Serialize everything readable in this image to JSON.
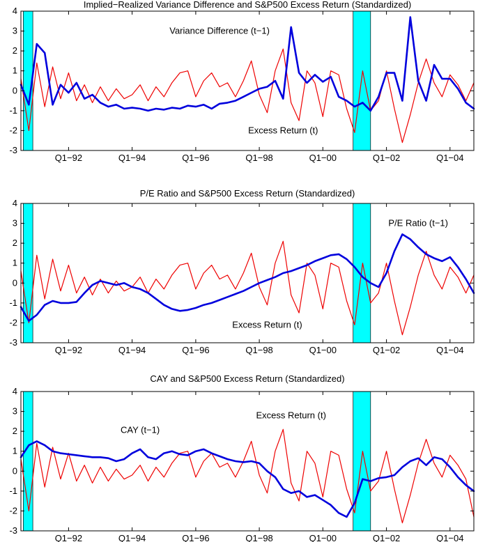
{
  "figure": {
    "background": "#ffffff",
    "axes_color": "#000000"
  },
  "chart_data": [
    {
      "type": "line",
      "title": "Implied−Realized Variance Difference and S&P500 Excess Return (Standardized)",
      "x_unit": "quarter",
      "xlim": [
        0,
        57
      ],
      "ylim": [
        -3,
        4
      ],
      "yticks": [
        -3,
        -2,
        -1,
        0,
        1,
        2,
        3,
        4
      ],
      "xticks": [
        6,
        14,
        22,
        30,
        38,
        46,
        54
      ],
      "xticklabels": [
        "Q1−92",
        "Q1−94",
        "Q1−96",
        "Q1−98",
        "Q1−00",
        "Q1−02",
        "Q1−04"
      ],
      "grid": false,
      "band_color": "#00ffff",
      "recession_bands": [
        [
          0.3,
          1.5
        ],
        [
          41.8,
          44.0
        ]
      ],
      "series": [
        {
          "name": "excess-return",
          "label": "Excess Return (t)",
          "color": "#ee0000",
          "width": 1.2,
          "values": [
            0.6,
            -2.0,
            1.4,
            -0.8,
            1.2,
            -0.4,
            0.9,
            -0.5,
            0.3,
            -0.6,
            0.2,
            -0.5,
            0.1,
            -0.4,
            -0.2,
            0.3,
            -0.5,
            0.2,
            -0.3,
            0.4,
            0.9,
            1.0,
            -0.3,
            0.5,
            0.9,
            0.2,
            0.4,
            -0.3,
            0.5,
            1.5,
            -0.2,
            -1.1,
            1.0,
            2.1,
            -0.6,
            -1.5,
            1.0,
            0.4,
            -1.3,
            1.0,
            0.8,
            -0.9,
            -2.1,
            1.0,
            -1.0,
            -0.5,
            1.0,
            -0.9,
            -2.6,
            -1.2,
            0.4,
            1.6,
            0.4,
            -0.3,
            0.8,
            0.3,
            -0.5,
            0.4
          ]
        },
        {
          "name": "variance-difference",
          "label": "Variance Difference (t−1)",
          "color": "#0000dd",
          "width": 2.6,
          "values": [
            0.3,
            -0.7,
            2.35,
            1.9,
            -0.7,
            0.3,
            -0.1,
            0.4,
            -0.4,
            -0.2,
            -0.6,
            -0.8,
            -0.7,
            -0.9,
            -0.85,
            -0.9,
            -1.0,
            -0.9,
            -0.95,
            -0.85,
            -0.9,
            -0.75,
            -0.8,
            -0.7,
            -0.9,
            -0.65,
            -0.6,
            -0.5,
            -0.3,
            -0.1,
            0.1,
            0.2,
            0.5,
            -0.4,
            3.2,
            0.9,
            0.4,
            0.8,
            0.45,
            0.7,
            -0.3,
            -0.5,
            -0.8,
            -0.6,
            -1.0,
            -0.3,
            0.9,
            0.9,
            -0.5,
            3.7,
            0.5,
            -0.5,
            1.3,
            0.6,
            0.6,
            0.1,
            -0.6,
            -0.9
          ]
        }
      ],
      "annotations": [
        {
          "text": "Variance Difference (t−1)",
          "x": 25,
          "y": 3.0
        },
        {
          "text": "Excess Return (t)",
          "x": 33,
          "y": -2.0
        }
      ]
    },
    {
      "type": "line",
      "title": "P/E Ratio and S&P500 Excess Return (Standardized)",
      "x_unit": "quarter",
      "xlim": [
        0,
        57
      ],
      "ylim": [
        -3,
        4
      ],
      "yticks": [
        -3,
        -2,
        -1,
        0,
        1,
        2,
        3,
        4
      ],
      "xticks": [
        6,
        14,
        22,
        30,
        38,
        46,
        54
      ],
      "xticklabels": [
        "Q1−92",
        "Q1−94",
        "Q1−96",
        "Q1−98",
        "Q1−00",
        "Q1−02",
        "Q1−04"
      ],
      "grid": false,
      "band_color": "#00ffff",
      "recession_bands": [
        [
          0.3,
          1.5
        ],
        [
          41.8,
          44.0
        ]
      ],
      "series": [
        {
          "name": "excess-return",
          "label": "Excess Return (t)",
          "color": "#ee0000",
          "width": 1.2,
          "values": [
            0.6,
            -2.0,
            1.4,
            -0.8,
            1.2,
            -0.4,
            0.9,
            -0.5,
            0.3,
            -0.6,
            0.2,
            -0.5,
            0.1,
            -0.4,
            -0.2,
            0.3,
            -0.5,
            0.2,
            -0.3,
            0.4,
            0.9,
            1.0,
            -0.3,
            0.5,
            0.9,
            0.2,
            0.4,
            -0.3,
            0.5,
            1.5,
            -0.2,
            -1.1,
            1.0,
            2.1,
            -0.6,
            -1.5,
            1.0,
            0.4,
            -1.3,
            1.0,
            0.8,
            -0.9,
            -2.1,
            1.0,
            -1.0,
            -0.5,
            1.0,
            -0.9,
            -2.6,
            -1.2,
            0.4,
            1.6,
            0.4,
            -0.3,
            0.8,
            0.3,
            -0.5,
            0.4
          ]
        },
        {
          "name": "pe-ratio",
          "label": "P/E Ratio (t−1)",
          "color": "#0000dd",
          "width": 2.6,
          "values": [
            -1.2,
            -1.9,
            -1.6,
            -1.1,
            -0.9,
            -1.0,
            -1.0,
            -0.95,
            -0.5,
            -0.1,
            0.1,
            0.0,
            -0.1,
            0.0,
            -0.2,
            -0.3,
            -0.5,
            -0.8,
            -1.1,
            -1.3,
            -1.4,
            -1.35,
            -1.25,
            -1.1,
            -1.0,
            -0.85,
            -0.7,
            -0.55,
            -0.4,
            -0.2,
            0.0,
            0.15,
            0.3,
            0.5,
            0.6,
            0.75,
            0.9,
            1.1,
            1.25,
            1.4,
            1.45,
            1.2,
            0.8,
            0.3,
            0.0,
            -0.2,
            0.5,
            1.6,
            2.45,
            2.2,
            1.8,
            1.45,
            1.25,
            1.1,
            1.3,
            0.8,
            0.2,
            -0.5
          ]
        }
      ],
      "annotations": [
        {
          "text": "P/E Ratio (t−1)",
          "x": 50,
          "y": 3.0
        },
        {
          "text": "Excess Return (t)",
          "x": 31,
          "y": -2.1
        }
      ]
    },
    {
      "type": "line",
      "title": "CAY and S&P500 Excess Return (Standardized)",
      "x_unit": "quarter",
      "xlim": [
        0,
        57
      ],
      "ylim": [
        -3,
        4
      ],
      "yticks": [
        -3,
        -2,
        -1,
        0,
        1,
        2,
        3,
        4
      ],
      "xticks": [
        6,
        14,
        22,
        30,
        38,
        46,
        54
      ],
      "xticklabels": [
        "Q1−92",
        "Q1−94",
        "Q1−96",
        "Q1−98",
        "Q1−00",
        "Q1−02",
        "Q1−04"
      ],
      "grid": false,
      "band_color": "#00ffff",
      "recession_bands": [
        [
          0.3,
          1.5
        ],
        [
          41.8,
          44.0
        ]
      ],
      "series": [
        {
          "name": "excess-return",
          "label": "Excess Return (t)",
          "color": "#ee0000",
          "width": 1.2,
          "values": [
            0.6,
            -2.0,
            1.4,
            -0.8,
            1.2,
            -0.4,
            0.9,
            -0.5,
            0.3,
            -0.6,
            0.2,
            -0.5,
            0.1,
            -0.4,
            -0.2,
            0.3,
            -0.5,
            0.2,
            -0.3,
            0.4,
            0.9,
            1.0,
            -0.3,
            0.5,
            0.9,
            0.2,
            0.4,
            -0.3,
            0.5,
            1.5,
            -0.2,
            -1.1,
            1.0,
            2.1,
            -0.6,
            -1.5,
            1.0,
            0.4,
            -1.3,
            1.0,
            0.8,
            -0.9,
            -2.1,
            1.0,
            -1.0,
            -0.5,
            1.0,
            -0.9,
            -2.6,
            -1.2,
            0.4,
            1.6,
            0.4,
            -0.3,
            0.8,
            0.3,
            -0.4,
            -2.3
          ]
        },
        {
          "name": "cay",
          "label": "CAY (t−1)",
          "color": "#0000dd",
          "width": 2.6,
          "values": [
            0.7,
            1.3,
            1.5,
            1.3,
            1.0,
            0.9,
            0.85,
            0.8,
            0.75,
            0.7,
            0.7,
            0.65,
            0.5,
            0.6,
            0.9,
            1.1,
            0.7,
            0.6,
            0.9,
            1.0,
            0.85,
            0.8,
            1.0,
            1.1,
            0.9,
            0.75,
            0.6,
            0.5,
            0.45,
            0.5,
            0.4,
            0.0,
            -0.3,
            -0.9,
            -1.1,
            -1.0,
            -1.3,
            -1.2,
            -1.45,
            -1.7,
            -2.1,
            -2.3,
            -1.6,
            -0.4,
            -0.5,
            -0.35,
            -0.3,
            -0.2,
            0.2,
            0.5,
            0.65,
            0.3,
            0.7,
            0.6,
            0.2,
            -0.3,
            -0.7,
            -1.0
          ]
        }
      ],
      "annotations": [
        {
          "text": "CAY (t−1)",
          "x": 15,
          "y": 2.05
        },
        {
          "text": "Excess Return (t)",
          "x": 34,
          "y": 2.8
        }
      ]
    }
  ]
}
